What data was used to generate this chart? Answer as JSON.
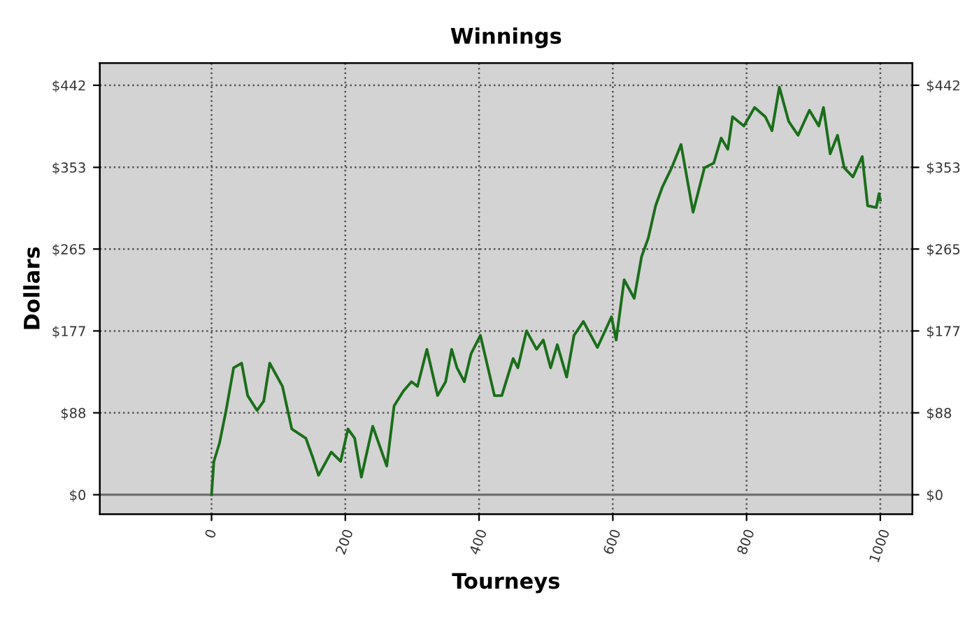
{
  "chart_data": {
    "type": "line",
    "title": "Winnings",
    "xlabel": "Tourneys",
    "ylabel": "Dollars",
    "xlim": [
      -167,
      1048
    ],
    "xticks": [
      0,
      200,
      400,
      600,
      800,
      1000
    ],
    "ylim": [
      -21,
      466
    ],
    "yticks": [
      {
        "value": 0,
        "label": "$0"
      },
      {
        "value": 88.4,
        "label": "$88"
      },
      {
        "value": 176.8,
        "label": "$177"
      },
      {
        "value": 265.2,
        "label": "$265"
      },
      {
        "value": 353.4,
        "label": "$353"
      },
      {
        "value": 442,
        "label": "$442"
      }
    ],
    "y2lim": [
      -21,
      466
    ],
    "y2ticks": [
      {
        "value": 0,
        "label": "$0"
      },
      {
        "value": 88.4,
        "label": "$88"
      },
      {
        "value": 176.8,
        "label": "$177"
      },
      {
        "value": 265.2,
        "label": "$265"
      },
      {
        "value": 353.4,
        "label": "$353"
      },
      {
        "value": 442,
        "label": "$442"
      }
    ],
    "grid": true,
    "line_style": "solid",
    "marker": "none",
    "ref_lines": [
      {
        "axis": "y",
        "value": 0,
        "color": "#707070"
      }
    ],
    "series": [
      {
        "color": "#1a6e1a",
        "x": [
          0,
          3.5,
          12,
          22,
          33,
          45,
          54,
          68,
          78,
          87,
          106,
          120,
          141,
          151,
          160,
          179,
          193,
          204,
          214,
          224,
          241,
          262,
          273,
          287,
          299,
          308,
          322,
          338,
          350,
          359,
          367,
          378,
          388,
          402,
          423,
          434,
          451,
          458,
          471,
          486,
          496,
          507,
          517,
          531,
          542,
          556,
          577,
          598,
          605,
          617,
          632,
          643,
          653,
          664,
          674,
          688,
          702,
          720,
          737,
          751,
          762,
          772,
          779,
          796,
          812,
          828,
          838,
          849,
          863,
          877,
          894,
          908,
          915,
          925,
          936,
          946,
          959,
          973,
          981,
          994,
          998,
          1000
        ],
        "values": [
          0,
          36,
          56,
          92,
          137,
          142,
          107,
          91,
          101,
          142,
          117,
          71,
          61,
          41,
          21,
          46,
          36,
          71,
          61,
          19,
          74,
          31,
          96,
          112,
          122,
          117,
          157,
          107,
          122,
          157,
          137,
          122,
          152,
          172,
          107,
          107,
          147,
          137,
          177,
          157,
          167,
          137,
          162,
          127,
          172,
          187,
          159,
          192,
          167,
          232,
          212,
          257,
          277,
          312,
          332,
          353,
          378,
          305,
          353,
          358,
          385,
          373,
          408,
          398,
          418,
          408,
          393,
          440,
          403,
          388,
          415,
          398,
          418,
          368,
          388,
          353,
          343,
          365,
          312,
          310,
          325,
          318
        ]
      }
    ]
  }
}
